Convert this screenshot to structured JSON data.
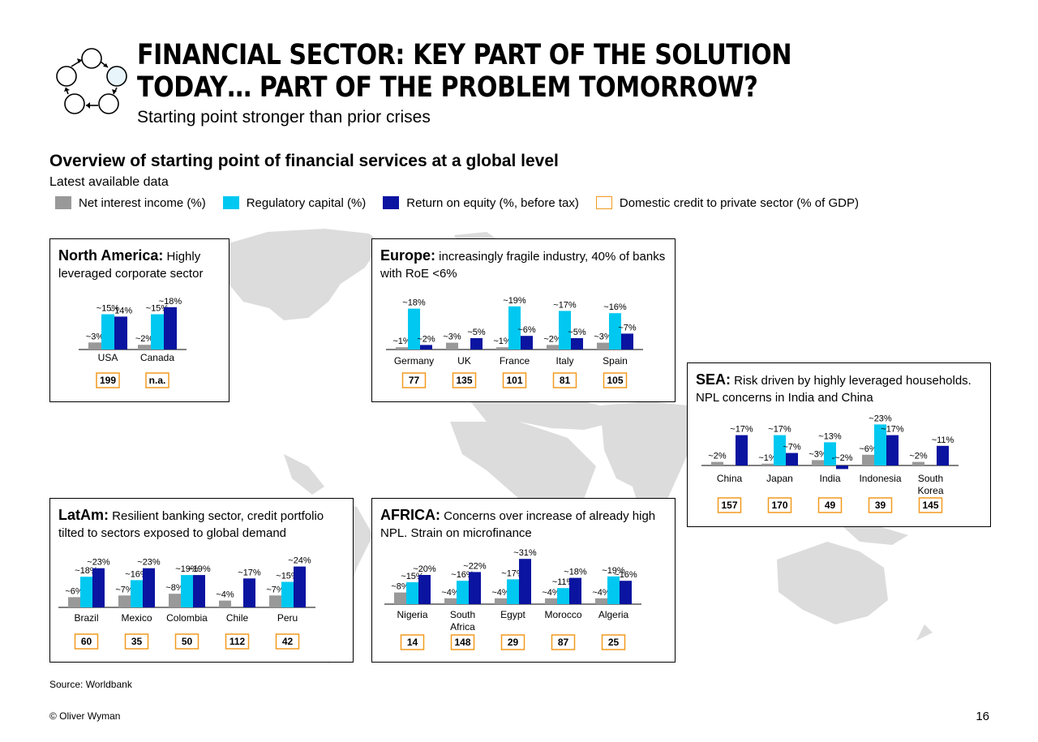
{
  "header": {
    "title": "FINANCIAL SECTOR: KEY PART OF THE SOLUTION TODAY… PART OF THE PROBLEM TOMORROW?",
    "subtitle": "Starting point stronger than prior crises"
  },
  "chart_heading": "Overview of starting point of financial services at a global level",
  "chart_subheading": "Latest available data",
  "colors": {
    "nii": "#999999",
    "cap": "#00c8f0",
    "roe": "#0a14a0",
    "credit_border": "#f29a1e",
    "map": "#dcdcdc"
  },
  "legend": [
    {
      "label": "Net interest income (%)",
      "key": "nii"
    },
    {
      "label": "Regulatory capital (%)",
      "key": "cap"
    },
    {
      "label": "Return on equity (%, before tax)",
      "key": "roe"
    },
    {
      "label": "Domestic credit to private sector (% of GDP)",
      "key": "credit"
    }
  ],
  "chart_data": [
    {
      "type": "bar",
      "region": "North America",
      "title_bold": "North America:",
      "title_rest": " Highly leveraged corporate sector",
      "categories": [
        "USA",
        "Canada"
      ],
      "series": [
        {
          "name": "Net interest income (%)",
          "values": [
            3,
            2
          ],
          "labels": [
            "~3%",
            "~2%"
          ]
        },
        {
          "name": "Regulatory capital (%)",
          "values": [
            15,
            15
          ],
          "labels": [
            "~15%",
            "~15%"
          ]
        },
        {
          "name": "Return on equity (%, before tax)",
          "values": [
            14,
            18
          ],
          "labels": [
            "~14%",
            "~18%"
          ]
        }
      ],
      "credit": [
        "199",
        "n.a."
      ]
    },
    {
      "type": "bar",
      "region": "Europe",
      "title_bold": "Europe:",
      "title_rest": " increasingly fragile industry, 40% of banks with RoE <6%",
      "categories": [
        "Germany",
        "UK",
        "France",
        "Italy",
        "Spain"
      ],
      "series": [
        {
          "name": "Net interest income (%)",
          "values": [
            1,
            3,
            1,
            2,
            3
          ],
          "labels": [
            "~1%",
            "~3%",
            "~1%",
            "~2%",
            "~3%"
          ]
        },
        {
          "name": "Regulatory capital (%)",
          "values": [
            18,
            null,
            19,
            17,
            16
          ],
          "labels": [
            "~18%",
            "",
            "~19%",
            "~17%",
            "~16%"
          ]
        },
        {
          "name": "Return on equity (%, before tax)",
          "values": [
            2,
            5,
            6,
            5,
            7
          ],
          "labels": [
            "~2%",
            "~5%",
            "~6%",
            "~5%",
            "~7%"
          ]
        }
      ],
      "credit": [
        "77",
        "135",
        "101",
        "81",
        "105"
      ]
    },
    {
      "type": "bar",
      "region": "SEA",
      "title_bold": "SEA:",
      "title_rest": " Risk driven by highly leveraged households. NPL concerns in India and China",
      "categories": [
        "China",
        "Japan",
        "India",
        "Indonesia",
        "South Korea"
      ],
      "series": [
        {
          "name": "Net interest income (%)",
          "values": [
            2,
            1,
            3,
            6,
            2
          ],
          "labels": [
            "~2%",
            "~1%",
            "~3%",
            "~6%",
            "~2%"
          ]
        },
        {
          "name": "Regulatory capital (%)",
          "values": [
            null,
            17,
            13,
            23,
            null
          ],
          "labels": [
            "",
            "~17%",
            "~13%",
            "~23%",
            ""
          ]
        },
        {
          "name": "Return on equity (%, before tax)",
          "values": [
            17,
            7,
            -2,
            17,
            11
          ],
          "labels": [
            "~17%",
            "~7%",
            "-~2%",
            "~17%",
            "~11%"
          ]
        }
      ],
      "credit": [
        "157",
        "170",
        "49",
        "39",
        "145"
      ]
    },
    {
      "type": "bar",
      "region": "LatAm",
      "title_bold": "LatAm:",
      "title_rest": " Resilient banking sector, credit portfolio tilted to sectors exposed to global demand",
      "categories": [
        "Brazil",
        "Mexico",
        "Colombia",
        "Chile",
        "Peru"
      ],
      "series": [
        {
          "name": "Net interest income (%)",
          "values": [
            6,
            7,
            8,
            4,
            7
          ],
          "labels": [
            "~6%",
            "~7%",
            "~8%",
            "~4%",
            "~7%"
          ]
        },
        {
          "name": "Regulatory capital (%)",
          "values": [
            18,
            16,
            19,
            null,
            15
          ],
          "labels": [
            "~18%",
            "~16%",
            "~19%",
            "",
            "~15%"
          ]
        },
        {
          "name": "Return on equity (%, before tax)",
          "values": [
            23,
            23,
            19,
            17,
            24
          ],
          "labels": [
            "~23%",
            "~23%",
            "~19%",
            "~17%",
            "~24%"
          ]
        }
      ],
      "credit": [
        "60",
        "35",
        "50",
        "112",
        "42"
      ]
    },
    {
      "type": "bar",
      "region": "AFRICA",
      "title_bold": "AFRICA:",
      "title_rest": " Concerns over increase of already high NPL. Strain on microfinance",
      "categories": [
        "Nigeria",
        "South Africa",
        "Egypt",
        "Morocco",
        "Algeria"
      ],
      "series": [
        {
          "name": "Net interest income (%)",
          "values": [
            8,
            4,
            4,
            4,
            4
          ],
          "labels": [
            "~8%",
            "~4%",
            "~4%",
            "~4%",
            "~4%"
          ]
        },
        {
          "name": "Regulatory capital (%)",
          "values": [
            15,
            16,
            17,
            11,
            19
          ],
          "labels": [
            "~15%",
            "~16%",
            "~17%",
            "~11%",
            "~19%"
          ]
        },
        {
          "name": "Return on equity (%, before tax)",
          "values": [
            20,
            22,
            31,
            18,
            16
          ],
          "labels": [
            "~20%",
            "~22%",
            "~31%",
            "~18%",
            "~16%"
          ]
        }
      ],
      "credit": [
        "14",
        "148",
        "29",
        "87",
        "25"
      ]
    }
  ],
  "footer": {
    "source": "Source: Worldbank",
    "copyright": "© Oliver Wyman",
    "page_number": "16"
  }
}
